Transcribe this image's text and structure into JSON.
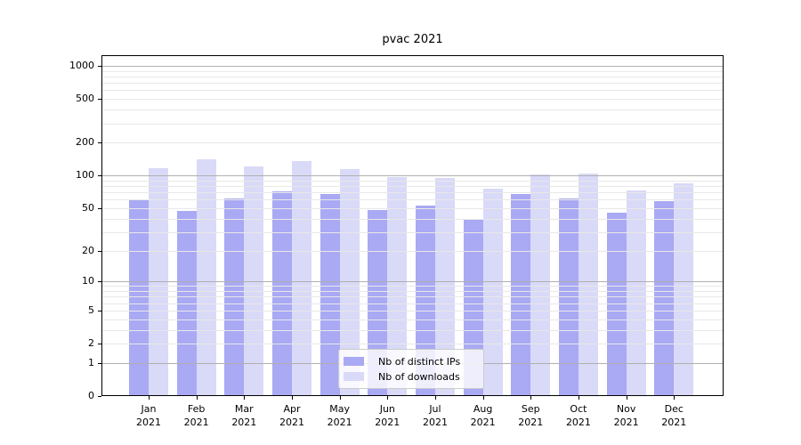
{
  "title": "pvac 2021",
  "chart_data": {
    "type": "bar",
    "title": "pvac 2021",
    "categories": [
      "Jan 2021",
      "Feb 2021",
      "Mar 2021",
      "Apr 2021",
      "May 2021",
      "Jun 2021",
      "Jul 2021",
      "Aug 2021",
      "Sep 2021",
      "Oct 2021",
      "Nov 2021",
      "Dec 2021"
    ],
    "x_tick_labels": [
      {
        "month": "Jan",
        "year": "2021"
      },
      {
        "month": "Feb",
        "year": "2021"
      },
      {
        "month": "Mar",
        "year": "2021"
      },
      {
        "month": "Apr",
        "year": "2021"
      },
      {
        "month": "May",
        "year": "2021"
      },
      {
        "month": "Jun",
        "year": "2021"
      },
      {
        "month": "Jul",
        "year": "2021"
      },
      {
        "month": "Aug",
        "year": "2021"
      },
      {
        "month": "Sep",
        "year": "2021"
      },
      {
        "month": "Oct",
        "year": "2021"
      },
      {
        "month": "Nov",
        "year": "2021"
      },
      {
        "month": "Dec",
        "year": "2021"
      }
    ],
    "series": [
      {
        "name": "Nb of distinct IPs",
        "color": "#a9a9f4",
        "values": [
          59,
          47,
          62,
          72,
          68,
          48,
          53,
          40,
          68,
          62,
          45,
          58
        ]
      },
      {
        "name": "Nb of downloads",
        "color": "#d9d9f8",
        "values": [
          117,
          140,
          120,
          135,
          114,
          96,
          95,
          76,
          102,
          105,
          73,
          85
        ]
      }
    ],
    "yscale": "log1p",
    "yticks": [
      0,
      1,
      2,
      5,
      10,
      20,
      50,
      100,
      200,
      500,
      1000
    ],
    "ygrid_major": [
      1,
      10,
      100,
      1000
    ],
    "ygrid_minor": [
      2,
      3,
      4,
      5,
      6,
      7,
      8,
      9,
      20,
      30,
      40,
      50,
      60,
      70,
      80,
      90,
      200,
      300,
      400,
      500,
      600,
      700,
      800,
      900
    ],
    "ylim": [
      0,
      1250
    ],
    "grid": true,
    "legend_position": "lower center",
    "colors": {
      "ips_bar": "#a9a9f4",
      "downloads_bar": "#d9d9f8",
      "grid_major": "#b0b0b0",
      "grid_minor": "#e8e8e8",
      "axis": "#000000"
    }
  },
  "legend": {
    "items": [
      {
        "label": "Nb of distinct IPs",
        "color": "#a9a9f4"
      },
      {
        "label": "Nb of downloads",
        "color": "#d9d9f8"
      }
    ]
  }
}
